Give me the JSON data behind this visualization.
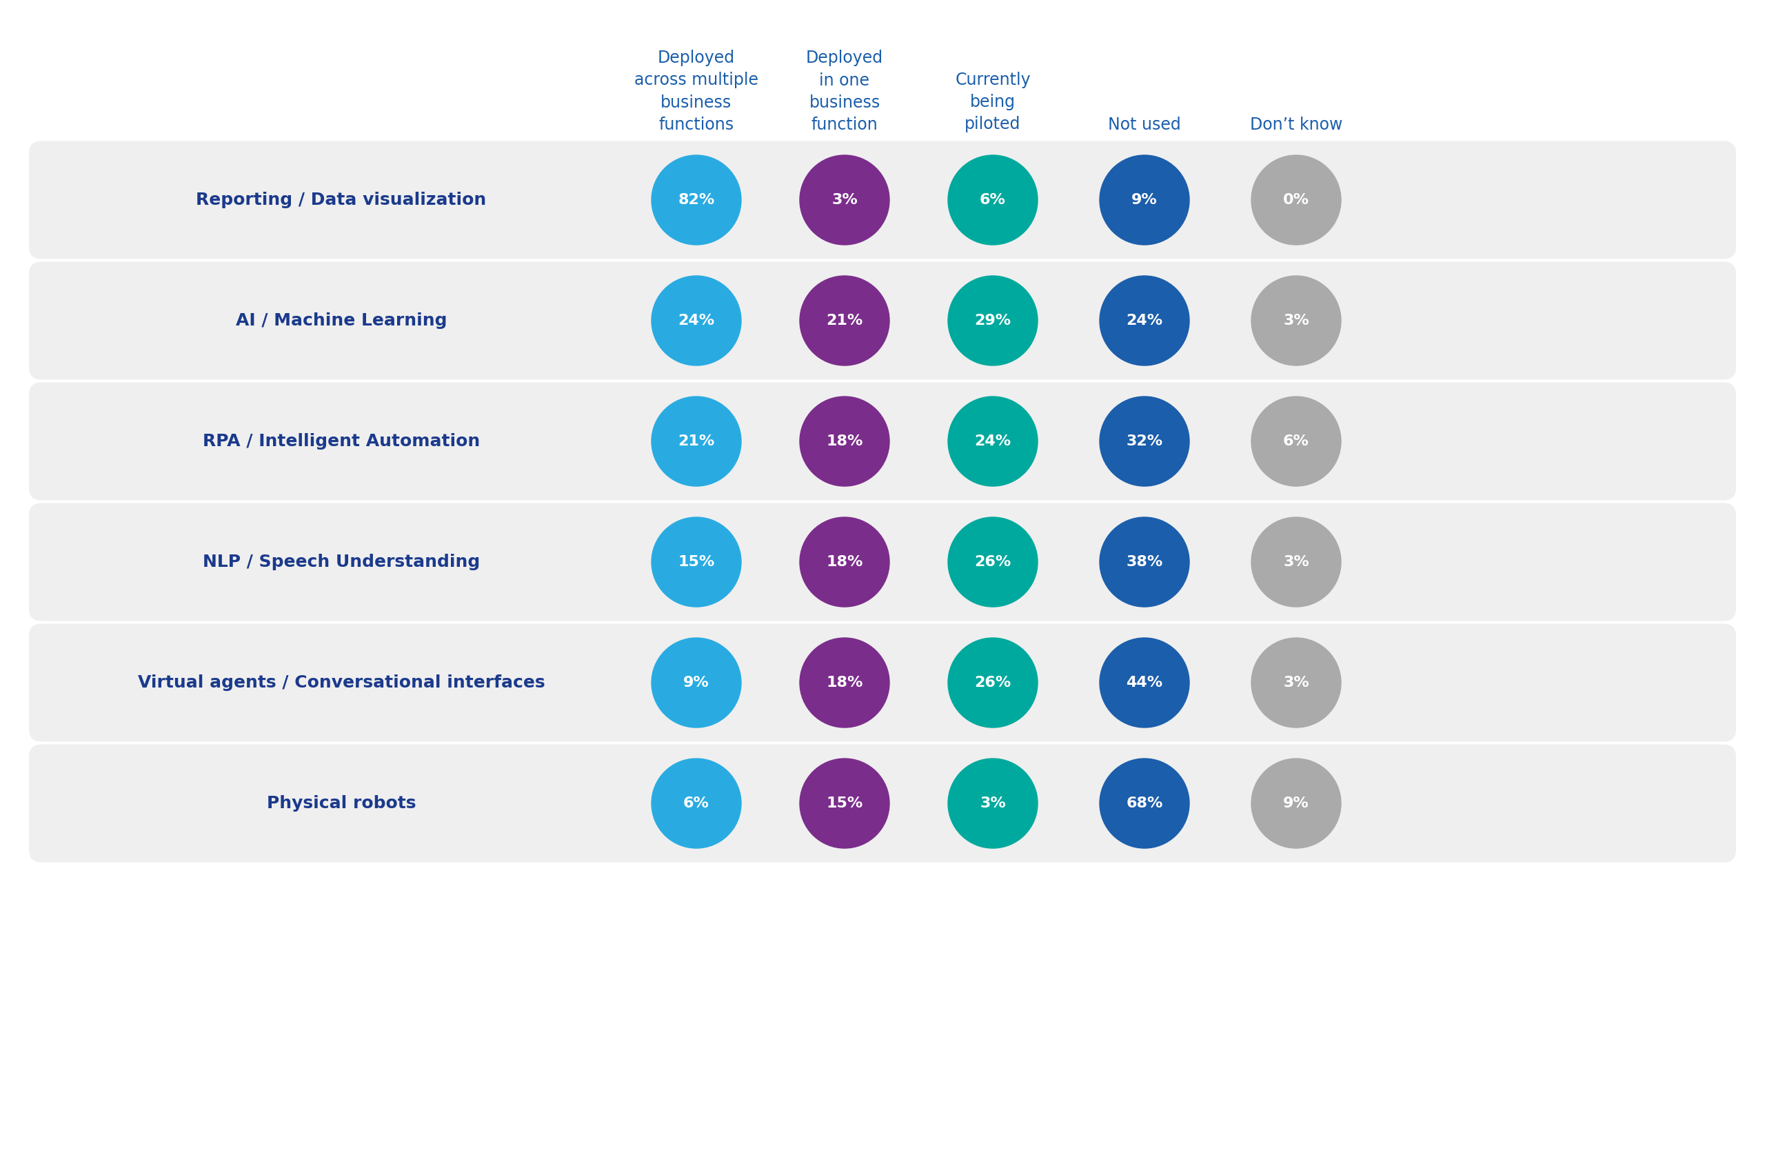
{
  "rows": [
    {
      "label": "Reporting / Data visualization",
      "values": [
        "82%",
        "3%",
        "6%",
        "9%",
        "0%"
      ]
    },
    {
      "label": "AI / Machine Learning",
      "values": [
        "24%",
        "21%",
        "29%",
        "24%",
        "3%"
      ]
    },
    {
      "label": "RPA / Intelligent Automation",
      "values": [
        "21%",
        "18%",
        "24%",
        "32%",
        "6%"
      ]
    },
    {
      "label": "NLP / Speech Understanding",
      "values": [
        "15%",
        "18%",
        "26%",
        "38%",
        "3%"
      ]
    },
    {
      "label": "Virtual agents / Conversational interfaces",
      "values": [
        "9%",
        "18%",
        "26%",
        "44%",
        "3%"
      ]
    },
    {
      "label": "Physical robots",
      "values": [
        "6%",
        "15%",
        "3%",
        "68%",
        "9%"
      ]
    }
  ],
  "col_headers": [
    "Deployed\nacross multiple\nbusiness\nfunctions",
    "Deployed\nin one\nbusiness\nfunction",
    "Currently\nbeing\npiloted",
    "Not used",
    "Don’t know"
  ],
  "circle_colors": [
    "#29ABE2",
    "#7B2D8B",
    "#00A99D",
    "#1B5EAB",
    "#AAAAAA"
  ],
  "header_color": "#1B5EAB",
  "label_color": "#1B3A8C",
  "bg_color": "#ffffff",
  "row_bg_color": "#EFEFEF",
  "fig_width": 25.6,
  "fig_height": 16.72
}
